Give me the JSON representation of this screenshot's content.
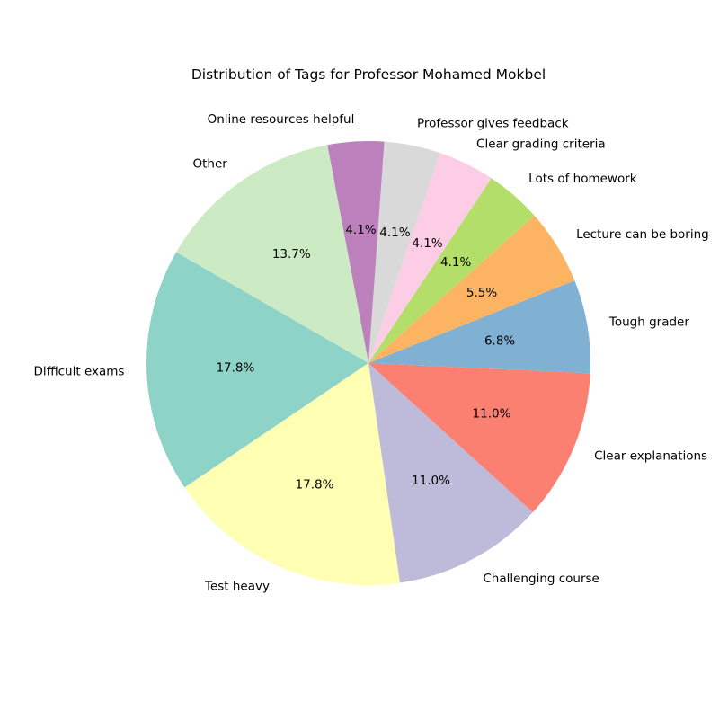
{
  "chart_data": {
    "type": "pie",
    "title": "Distribution of Tags for Professor Mohamed Mokbel",
    "slices": [
      {
        "label": "Difficult exams",
        "value": 17.8,
        "pct_label": "17.8%",
        "color": "#8dd3c7"
      },
      {
        "label": "Test heavy",
        "value": 17.8,
        "pct_label": "17.8%",
        "color": "#ffffb3"
      },
      {
        "label": "Challenging course",
        "value": 11.0,
        "pct_label": "11.0%",
        "color": "#bebada"
      },
      {
        "label": "Clear explanations",
        "value": 11.0,
        "pct_label": "11.0%",
        "color": "#fb8072"
      },
      {
        "label": "Tough grader",
        "value": 6.8,
        "pct_label": "6.8%",
        "color": "#80b1d3"
      },
      {
        "label": "Lecture can be boring",
        "value": 5.5,
        "pct_label": "5.5%",
        "color": "#fdb462"
      },
      {
        "label": "Lots of homework",
        "value": 4.1,
        "pct_label": "4.1%",
        "color": "#b3de69"
      },
      {
        "label": "Clear grading criteria",
        "value": 4.1,
        "pct_label": "4.1%",
        "color": "#fccde5"
      },
      {
        "label": "Professor gives feedback",
        "value": 4.1,
        "pct_label": "4.1%",
        "color": "#d9d9d9"
      },
      {
        "label": "Online resources helpful",
        "value": 4.1,
        "pct_label": "4.1%",
        "color": "#bc80bd"
      },
      {
        "label": "Other",
        "value": 13.7,
        "pct_label": "13.7%",
        "color": "#ccebc5"
      }
    ],
    "start_angle_deg": 150,
    "direction": "counterclockwise"
  }
}
